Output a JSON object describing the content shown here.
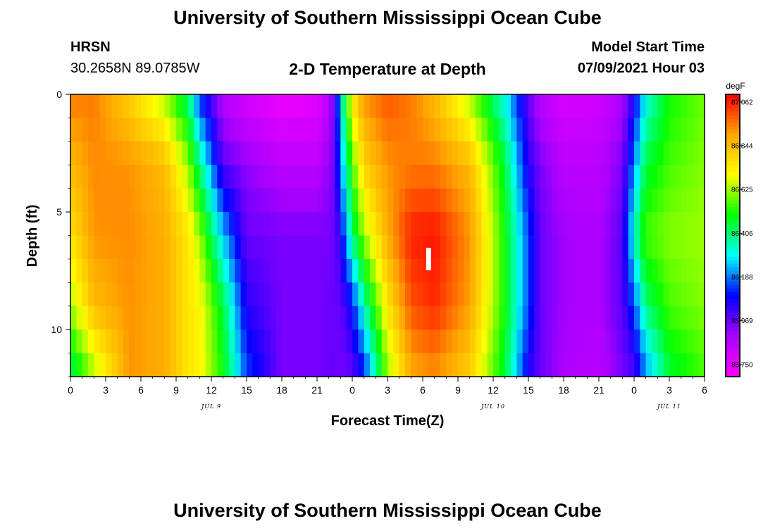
{
  "header": {
    "title_top": "University of Southern Mississippi Ocean Cube",
    "station": "HRSN",
    "location": "30.2658N  89.0785W",
    "plot_title": "2-D Temperature at Depth",
    "model_start_label": "Model Start Time",
    "model_start_value": "07/09/2021 Hour 03"
  },
  "footer": {
    "title_bottom": "University of Southern Mississippi Ocean Cube"
  },
  "colors": {
    "palette": [
      "#ff00ff",
      "#aa00ff",
      "#0000ff",
      "#00ffff",
      "#00ff00",
      "#ffff00",
      "#ffa500",
      "#ff0000"
    ]
  },
  "chart_data": {
    "type": "heatmap",
    "title": "2-D Temperature at Depth",
    "xlabel": "Forecast Time(Z)",
    "ylabel": "Depth (ft)",
    "x_tick_labels": [
      "0",
      "3",
      "6",
      "9",
      "12",
      "15",
      "18",
      "21",
      "0",
      "3",
      "6",
      "9",
      "12",
      "15",
      "18",
      "21",
      "0",
      "3",
      "6"
    ],
    "x_hours_range": [
      0,
      54
    ],
    "date_labels": [
      {
        "text": "JUL 9",
        "hour": 12
      },
      {
        "text": "JUL 10",
        "hour": 36
      },
      {
        "text": "JUL 11",
        "hour": 51
      }
    ],
    "y_tick_labels": [
      "0",
      "5",
      "10"
    ],
    "ylim": [
      0,
      12
    ],
    "colorbar": {
      "unit": "degF",
      "min": 85.69,
      "max": 87.1,
      "tick_labels": [
        "87.062",
        "86.844",
        "86.625",
        "86.406",
        "86.188",
        "85.969",
        "85.750"
      ]
    },
    "marker": {
      "hour": 30.5,
      "depth": 7
    },
    "profile_depths": [
      0,
      3,
      6,
      9,
      12
    ],
    "profiles": [
      {
        "hour": 0,
        "temps": [
          86.95,
          86.85,
          86.75,
          86.62,
          86.4
        ]
      },
      {
        "hour": 2,
        "temps": [
          86.95,
          86.93,
          86.92,
          86.85,
          86.62
        ]
      },
      {
        "hour": 5,
        "temps": [
          86.8,
          86.92,
          86.93,
          86.92,
          86.92
        ]
      },
      {
        "hour": 8,
        "temps": [
          86.62,
          86.85,
          86.88,
          86.88,
          86.88
        ]
      },
      {
        "hour": 10,
        "temps": [
          86.4,
          86.62,
          86.75,
          86.75,
          86.75
        ]
      },
      {
        "hour": 11,
        "temps": [
          86.12,
          86.4,
          86.62,
          86.72,
          86.72
        ]
      },
      {
        "hour": 13,
        "temps": [
          85.85,
          85.99,
          86.25,
          86.45,
          86.5
        ]
      },
      {
        "hour": 15,
        "temps": [
          85.78,
          85.92,
          85.97,
          86.05,
          86.15
        ]
      },
      {
        "hour": 18,
        "temps": [
          85.72,
          85.85,
          85.95,
          85.95,
          85.95
        ]
      },
      {
        "hour": 21,
        "temps": [
          85.75,
          85.85,
          85.95,
          85.95,
          85.95
        ]
      },
      {
        "hour": 22,
        "temps": [
          85.85,
          85.92,
          85.95,
          85.97,
          85.97
        ]
      },
      {
        "hour": 22.5,
        "temps": [
          85.97,
          85.97,
          85.97,
          85.97,
          85.97
        ]
      },
      {
        "hour": 23,
        "temps": [
          86.3,
          86.2,
          86.05,
          85.97,
          85.95
        ]
      },
      {
        "hour": 24,
        "temps": [
          86.75,
          86.55,
          86.4,
          86.1,
          85.97
        ]
      },
      {
        "hour": 25,
        "temps": [
          86.92,
          86.8,
          86.62,
          86.35,
          86.1
        ]
      },
      {
        "hour": 27,
        "temps": [
          87.0,
          86.92,
          86.88,
          86.75,
          86.6
        ]
      },
      {
        "hour": 29,
        "temps": [
          86.95,
          86.95,
          87.06,
          87.0,
          86.88
        ]
      },
      {
        "hour": 31,
        "temps": [
          86.85,
          86.95,
          87.08,
          87.05,
          86.92
        ]
      },
      {
        "hour": 34,
        "temps": [
          86.62,
          86.85,
          86.92,
          86.9,
          86.8
        ]
      },
      {
        "hour": 37,
        "temps": [
          86.3,
          86.45,
          86.5,
          86.5,
          86.45
        ]
      },
      {
        "hour": 39,
        "temps": [
          85.97,
          86.05,
          86.15,
          86.15,
          86.05
        ]
      },
      {
        "hour": 40,
        "temps": [
          85.85,
          85.95,
          85.97,
          85.97,
          85.97
        ]
      },
      {
        "hour": 42,
        "temps": [
          85.78,
          85.85,
          85.9,
          85.9,
          85.88
        ]
      },
      {
        "hour": 45,
        "temps": [
          85.8,
          85.85,
          85.88,
          85.88,
          85.85
        ]
      },
      {
        "hour": 47,
        "temps": [
          85.88,
          85.95,
          85.99,
          85.99,
          85.95
        ]
      },
      {
        "hour": 48,
        "temps": [
          86.05,
          86.2,
          86.35,
          86.15,
          85.99
        ]
      },
      {
        "hour": 49,
        "temps": [
          86.3,
          86.45,
          86.55,
          86.4,
          86.2
        ]
      },
      {
        "hour": 51,
        "temps": [
          86.5,
          86.55,
          86.6,
          86.55,
          86.45
        ]
      },
      {
        "hour": 54,
        "temps": [
          86.58,
          86.6,
          86.62,
          86.6,
          86.55
        ]
      }
    ]
  }
}
